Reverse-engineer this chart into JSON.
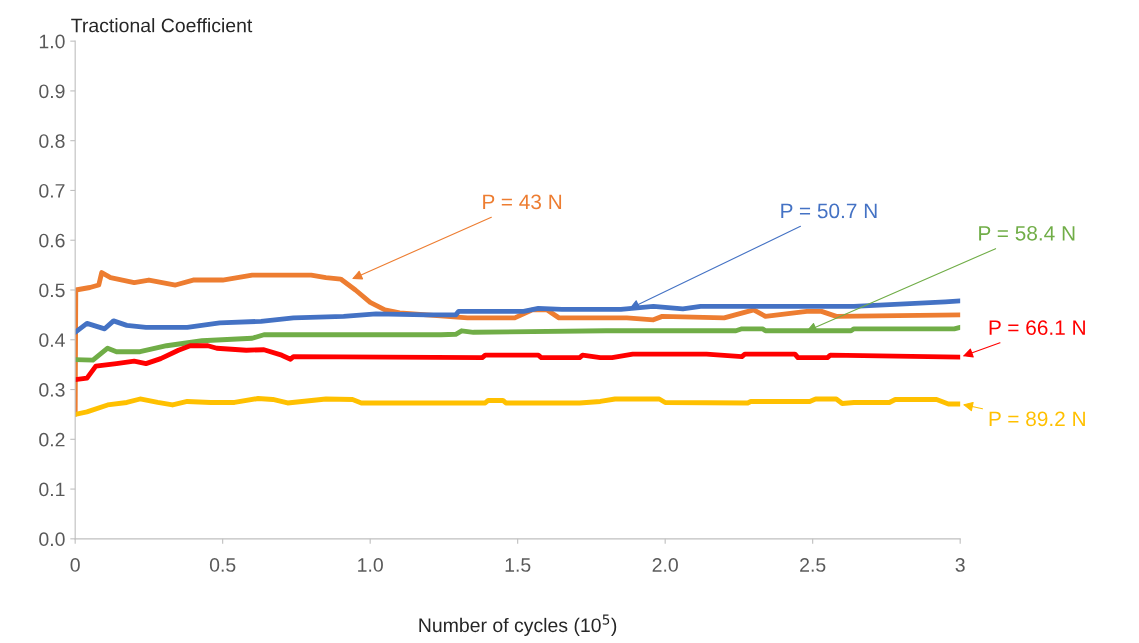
{
  "chart_data": {
    "type": "line",
    "ylabel": "Tractional Coefficient",
    "xlabel": "Number of cycles (10$^{5}$)",
    "xlim": [
      0,
      3
    ],
    "xticks": [
      0,
      0.5,
      {
        "value": 1,
        "label": "1.0"
      },
      1.5,
      {
        "value": 2,
        "label": "2.0"
      },
      2.5,
      3
    ],
    "ylim": [
      0,
      1
    ],
    "yticks": [
      {
        "value": 0,
        "label": "0.0"
      },
      0.1,
      0.2,
      0.3,
      0.4,
      0.5,
      0.6,
      0.7,
      0.8,
      0.9,
      {
        "value": 1,
        "label": "1.0"
      }
    ],
    "grid": false,
    "legend": false,
    "series": [
      {
        "color": "#ed7d31",
        "x": [
          0,
          0.002,
          0.05,
          0.08,
          0.09,
          0.12,
          0.2,
          0.25,
          0.34,
          0.4,
          0.5,
          0.6,
          0.8,
          0.85,
          0.9,
          0.95,
          1.0,
          1.05,
          1.1,
          1.33,
          1.49,
          1.55,
          1.6,
          1.64,
          1.87,
          1.96,
          1.99,
          2.2,
          2.3,
          2.34,
          2.48,
          2.53,
          2.58,
          3.0
        ],
        "values": [
          0.25,
          0.5,
          0.505,
          0.51,
          0.535,
          0.525,
          0.515,
          0.52,
          0.51,
          0.52,
          0.52,
          0.53,
          0.53,
          0.525,
          0.522,
          0.5,
          0.475,
          0.46,
          0.454,
          0.444,
          0.444,
          0.46,
          0.46,
          0.444,
          0.444,
          0.44,
          0.447,
          0.444,
          0.46,
          0.447,
          0.457,
          0.457,
          0.447,
          0.45
        ]
      },
      {
        "color": "#4472c4",
        "x": [
          0,
          0.04,
          0.1,
          0.13,
          0.175,
          0.24,
          0.38,
          0.49,
          0.63,
          0.74,
          0.91,
          1.02,
          1.19,
          1.29,
          1.3,
          1.52,
          1.57,
          1.65,
          1.85,
          1.96,
          2.06,
          2.12,
          2.64,
          2.95,
          3.0
        ],
        "values": [
          0.415,
          0.433,
          0.422,
          0.438,
          0.429,
          0.425,
          0.425,
          0.434,
          0.437,
          0.444,
          0.447,
          0.452,
          0.45,
          0.45,
          0.457,
          0.457,
          0.463,
          0.461,
          0.461,
          0.467,
          0.462,
          0.467,
          0.467,
          0.476,
          0.478
        ]
      },
      {
        "color": "#70ad47",
        "x": [
          0,
          0.06,
          0.11,
          0.14,
          0.22,
          0.31,
          0.43,
          0.6,
          0.64,
          0.85,
          1.24,
          1.29,
          1.31,
          1.35,
          1.8,
          2.24,
          2.26,
          2.33,
          2.34,
          2.63,
          2.64,
          2.98,
          3.0
        ],
        "values": [
          0.36,
          0.359,
          0.383,
          0.376,
          0.376,
          0.388,
          0.398,
          0.403,
          0.41,
          0.41,
          0.41,
          0.411,
          0.418,
          0.415,
          0.418,
          0.418,
          0.422,
          0.422,
          0.418,
          0.418,
          0.422,
          0.422,
          0.425
        ]
      },
      {
        "color": "#ff0000",
        "x": [
          0,
          0.04,
          0.07,
          0.14,
          0.2,
          0.24,
          0.29,
          0.35,
          0.39,
          0.45,
          0.48,
          0.58,
          0.64,
          0.7,
          0.73,
          0.74,
          1.38,
          1.39,
          1.57,
          1.58,
          1.71,
          1.72,
          1.78,
          1.82,
          1.89,
          2.14,
          2.26,
          2.27,
          2.44,
          2.45,
          2.55,
          2.56,
          3.0
        ],
        "values": [
          0.32,
          0.323,
          0.347,
          0.352,
          0.357,
          0.352,
          0.362,
          0.379,
          0.388,
          0.388,
          0.383,
          0.379,
          0.38,
          0.369,
          0.361,
          0.366,
          0.364,
          0.369,
          0.369,
          0.364,
          0.364,
          0.369,
          0.364,
          0.364,
          0.371,
          0.371,
          0.366,
          0.371,
          0.371,
          0.364,
          0.364,
          0.369,
          0.365
        ]
      },
      {
        "color": "#ffc000",
        "x": [
          0,
          0.04,
          0.11,
          0.175,
          0.22,
          0.28,
          0.33,
          0.38,
          0.46,
          0.54,
          0.62,
          0.67,
          0.72,
          0.85,
          0.94,
          0.97,
          1.39,
          1.4,
          1.45,
          1.46,
          1.71,
          1.78,
          1.83,
          1.98,
          2.0,
          2.28,
          2.29,
          2.49,
          2.51,
          2.58,
          2.6,
          2.64,
          2.76,
          2.78,
          2.92,
          2.96,
          3.0
        ],
        "values": [
          0.25,
          0.255,
          0.269,
          0.274,
          0.281,
          0.274,
          0.269,
          0.276,
          0.274,
          0.274,
          0.282,
          0.28,
          0.273,
          0.281,
          0.28,
          0.273,
          0.273,
          0.278,
          0.278,
          0.273,
          0.273,
          0.276,
          0.281,
          0.281,
          0.274,
          0.273,
          0.276,
          0.276,
          0.281,
          0.281,
          0.272,
          0.274,
          0.274,
          0.28,
          0.28,
          0.271,
          0.271
        ]
      }
    ],
    "annotations": [
      {
        "text": "P = 43 N",
        "x": 0.93,
        "y": 0.52
      },
      {
        "text": "P = 50.7 N",
        "x": 1.87,
        "y": 0.46
      },
      {
        "text": "P = 58.4 N",
        "x": 2.47,
        "y": 0.415
      },
      {
        "text": "P = 66.1 N",
        "x": 3.0,
        "y": 0.365
      },
      {
        "text": "P = 89.2 N",
        "x": 3.0,
        "y": 0.271
      }
    ]
  }
}
